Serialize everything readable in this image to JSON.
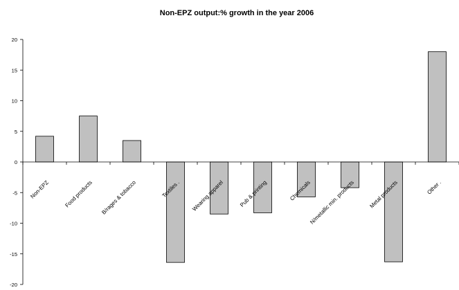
{
  "chart_data": {
    "type": "bar",
    "title": "Non-EPZ output:% growth in the year 2006",
    "xlabel": "",
    "ylabel": "",
    "ylim": [
      -20,
      20
    ],
    "yticks": [
      20,
      15,
      10,
      5,
      0,
      -5,
      -10,
      -15,
      -20
    ],
    "ytick_labels": [
      "20",
      "15",
      "10",
      "5",
      "0",
      "-5",
      "-10",
      "-15",
      "-20"
    ],
    "grid": false,
    "categories": [
      "Non-EPZ",
      "Food products",
      "B/rages & tobacco",
      "Textiles .",
      "Wearing apparel",
      "Pub & printing",
      "Chemicals",
      "N/metallic min. products",
      "Metal products",
      "Other ."
    ],
    "values": [
      4.2,
      7.5,
      3.5,
      -16.4,
      -8.5,
      -8.3,
      -5.7,
      -4.2,
      -16.3,
      18.0
    ],
    "bar_color": "#c0c0c0"
  }
}
